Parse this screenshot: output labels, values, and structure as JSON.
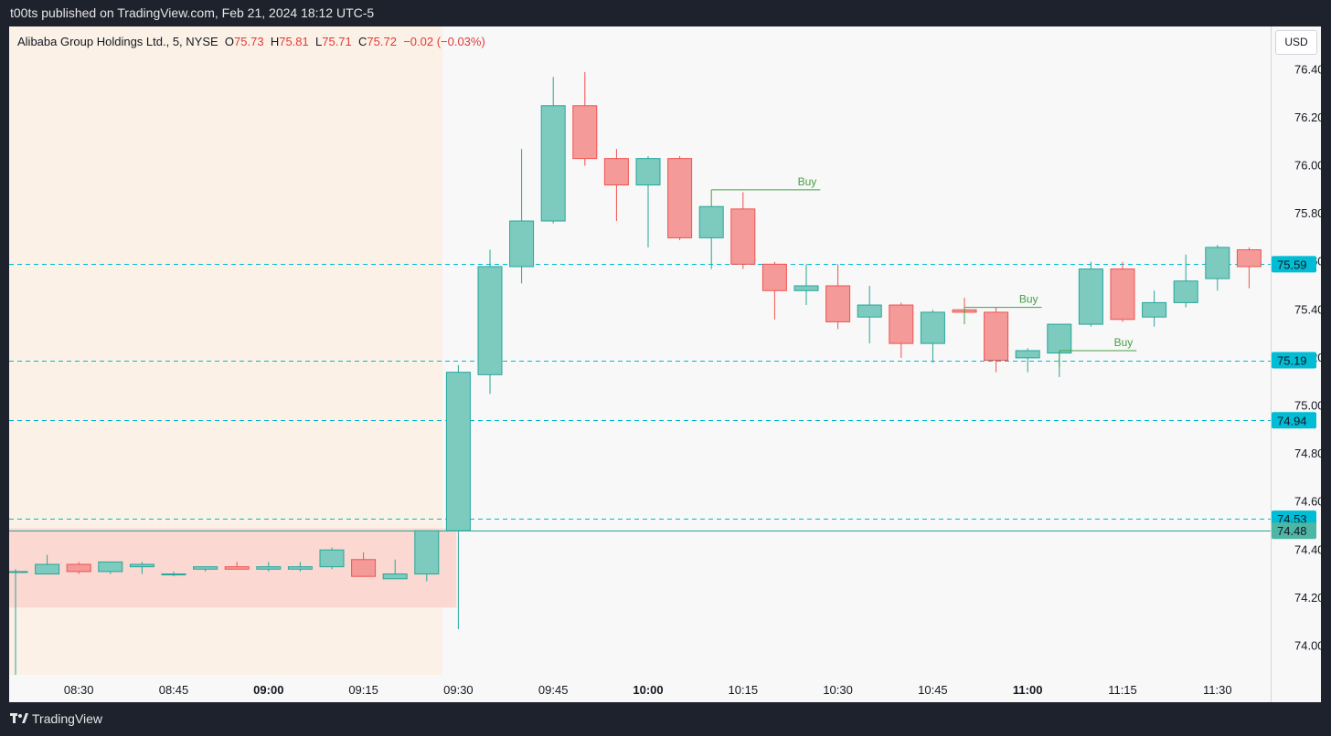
{
  "header": {
    "published": "t00ts published on TradingView.com, Feb 21, 2024 18:12 UTC-5"
  },
  "legend": {
    "symbol": "Alibaba Group Holdings Ltd., 5, NYSE",
    "o_label": "O",
    "o": "75.73",
    "h_label": "H",
    "h": "75.81",
    "l_label": "L",
    "l": "75.71",
    "c_label": "C",
    "c": "75.72",
    "change": "−0.02 (−0.03%)"
  },
  "currency_button": "USD",
  "footer": {
    "brand": "TradingView"
  },
  "colors": {
    "up": "#26a69a",
    "up_fill": "#7dcbbf",
    "down": "#ef5350",
    "down_fill": "#f49a98",
    "premarket_bg": "#fbf1e6",
    "range_box": "#fbd6d0",
    "level": "#00bcd4",
    "buy": "#43a047"
  },
  "chart_data": {
    "type": "candlestick",
    "title": "Alibaba Group Holdings Ltd., 5, NYSE",
    "y_range": [
      73.88,
      76.58
    ],
    "y_ticks": [
      "74.00",
      "74.20",
      "74.40",
      "74.60",
      "74.80",
      "75.00",
      "75.20",
      "75.40",
      "75.60",
      "75.80",
      "76.00",
      "76.20",
      "76.40"
    ],
    "x_ticks": [
      {
        "label": "08:30",
        "bold": false
      },
      {
        "label": "08:45",
        "bold": false
      },
      {
        "label": "09:00",
        "bold": true
      },
      {
        "label": "09:15",
        "bold": false
      },
      {
        "label": "09:30",
        "bold": false
      },
      {
        "label": "09:45",
        "bold": false
      },
      {
        "label": "10:00",
        "bold": true
      },
      {
        "label": "10:15",
        "bold": false
      },
      {
        "label": "10:30",
        "bold": false
      },
      {
        "label": "10:45",
        "bold": false
      },
      {
        "label": "11:00",
        "bold": true
      },
      {
        "label": "11:15",
        "bold": false
      },
      {
        "label": "11:30",
        "bold": false
      }
    ],
    "first_bar_time": "08:20",
    "bar_minutes": 5,
    "candles": [
      {
        "t": "08:20",
        "o": 74.31,
        "h": 74.32,
        "l": 73.88,
        "c": 74.31
      },
      {
        "t": "08:25",
        "o": 74.3,
        "h": 74.38,
        "l": 74.3,
        "c": 74.34
      },
      {
        "t": "08:30",
        "o": 74.34,
        "h": 74.35,
        "l": 74.3,
        "c": 74.31
      },
      {
        "t": "08:35",
        "o": 74.31,
        "h": 74.35,
        "l": 74.3,
        "c": 74.35
      },
      {
        "t": "08:40",
        "o": 74.33,
        "h": 74.35,
        "l": 74.3,
        "c": 74.34
      },
      {
        "t": "08:45",
        "o": 74.3,
        "h": 74.31,
        "l": 74.29,
        "c": 74.3
      },
      {
        "t": "08:50",
        "o": 74.32,
        "h": 74.33,
        "l": 74.31,
        "c": 74.33
      },
      {
        "t": "08:55",
        "o": 74.33,
        "h": 74.35,
        "l": 74.32,
        "c": 74.32
      },
      {
        "t": "09:00",
        "o": 74.32,
        "h": 74.35,
        "l": 74.31,
        "c": 74.33
      },
      {
        "t": "09:05",
        "o": 74.32,
        "h": 74.35,
        "l": 74.31,
        "c": 74.33
      },
      {
        "t": "09:10",
        "o": 74.33,
        "h": 74.41,
        "l": 74.32,
        "c": 74.4
      },
      {
        "t": "09:15",
        "o": 74.36,
        "h": 74.39,
        "l": 74.29,
        "c": 74.29
      },
      {
        "t": "09:20",
        "o": 74.28,
        "h": 74.36,
        "l": 74.28,
        "c": 74.3
      },
      {
        "t": "09:25",
        "o": 74.3,
        "h": 74.48,
        "l": 74.27,
        "c": 74.48
      },
      {
        "t": "09:30",
        "o": 74.48,
        "h": 75.17,
        "l": 74.07,
        "c": 75.14
      },
      {
        "t": "09:35",
        "o": 75.13,
        "h": 75.65,
        "l": 75.05,
        "c": 75.58
      },
      {
        "t": "09:40",
        "o": 75.58,
        "h": 76.07,
        "l": 75.51,
        "c": 75.77
      },
      {
        "t": "09:45",
        "o": 75.77,
        "h": 76.37,
        "l": 75.76,
        "c": 76.25
      },
      {
        "t": "09:50",
        "o": 76.25,
        "h": 76.39,
        "l": 76.0,
        "c": 76.03
      },
      {
        "t": "09:55",
        "o": 76.03,
        "h": 76.07,
        "l": 75.77,
        "c": 75.92
      },
      {
        "t": "10:00",
        "o": 75.92,
        "h": 76.04,
        "l": 75.66,
        "c": 76.03
      },
      {
        "t": "10:05",
        "o": 76.03,
        "h": 76.04,
        "l": 75.69,
        "c": 75.7
      },
      {
        "t": "10:10",
        "o": 75.7,
        "h": 75.83,
        "l": 75.57,
        "c": 75.83
      },
      {
        "t": "10:15",
        "o": 75.82,
        "h": 75.89,
        "l": 75.57,
        "c": 75.59
      },
      {
        "t": "10:20",
        "o": 75.59,
        "h": 75.6,
        "l": 75.36,
        "c": 75.48
      },
      {
        "t": "10:25",
        "o": 75.48,
        "h": 75.59,
        "l": 75.42,
        "c": 75.5
      },
      {
        "t": "10:30",
        "o": 75.5,
        "h": 75.59,
        "l": 75.32,
        "c": 75.35
      },
      {
        "t": "10:35",
        "o": 75.37,
        "h": 75.5,
        "l": 75.26,
        "c": 75.42
      },
      {
        "t": "10:40",
        "o": 75.42,
        "h": 75.43,
        "l": 75.2,
        "c": 75.26
      },
      {
        "t": "10:45",
        "o": 75.26,
        "h": 75.4,
        "l": 75.18,
        "c": 75.39
      },
      {
        "t": "10:50",
        "o": 75.4,
        "h": 75.45,
        "l": 75.34,
        "c": 75.39
      },
      {
        "t": "10:55",
        "o": 75.39,
        "h": 75.41,
        "l": 75.14,
        "c": 75.19
      },
      {
        "t": "11:00",
        "o": 75.2,
        "h": 75.24,
        "l": 75.14,
        "c": 75.23
      },
      {
        "t": "11:05",
        "o": 75.22,
        "h": 75.34,
        "l": 75.12,
        "c": 75.34
      },
      {
        "t": "11:10",
        "o": 75.34,
        "h": 75.6,
        "l": 75.33,
        "c": 75.57
      },
      {
        "t": "11:15",
        "o": 75.57,
        "h": 75.6,
        "l": 75.35,
        "c": 75.36
      },
      {
        "t": "11:20",
        "o": 75.37,
        "h": 75.48,
        "l": 75.33,
        "c": 75.43
      },
      {
        "t": "11:25",
        "o": 75.43,
        "h": 75.63,
        "l": 75.41,
        "c": 75.52
      },
      {
        "t": "11:30",
        "o": 75.53,
        "h": 75.67,
        "l": 75.48,
        "c": 75.66
      },
      {
        "t": "11:35",
        "o": 75.65,
        "h": 75.66,
        "l": 75.49,
        "c": 75.58
      }
    ],
    "price_levels": [
      {
        "price": 75.59,
        "label": "75.59",
        "style": "dashed"
      },
      {
        "price": 75.19,
        "label": "75.19",
        "style": "dashed"
      },
      {
        "price": 74.94,
        "label": "74.94",
        "style": "dashed"
      },
      {
        "price": 74.53,
        "label": "74.53",
        "style": "dashed"
      },
      {
        "price": 74.48,
        "label": "74.48",
        "style": "solid"
      }
    ],
    "premarket_session": {
      "start": "08:20",
      "end": "09:25"
    },
    "range_box": {
      "start": "08:20",
      "end": "09:30",
      "top": 74.49,
      "bottom": 74.16
    },
    "buy_signals": [
      {
        "label": "Buy",
        "start": "10:10",
        "end": "10:25",
        "price": 75.9
      },
      {
        "label": "Buy",
        "start": "10:50",
        "end": "11:00",
        "price": 75.41
      },
      {
        "label": "Buy",
        "start": "11:05",
        "end": "11:15",
        "price": 75.23
      }
    ]
  }
}
